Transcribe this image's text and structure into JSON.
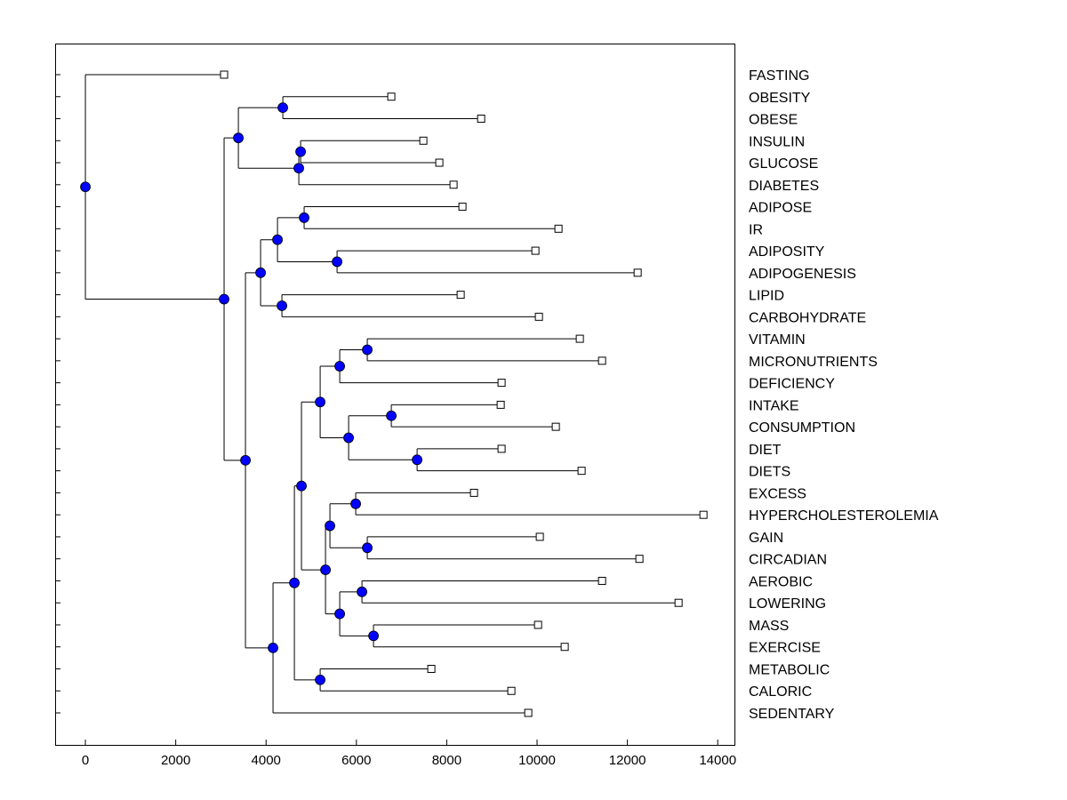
{
  "chart_data": {
    "type": "dendrogram",
    "title": "",
    "xlabel": "",
    "ylabel": "",
    "xlim": [
      -670,
      14370
    ],
    "xticks": [
      0,
      2000,
      4000,
      6000,
      8000,
      10000,
      12000,
      14000
    ],
    "node_color": "#0000ff",
    "leaves": [
      {
        "name": "FASTING",
        "value": 3071
      },
      {
        "name": "OBESITY",
        "value": 6773
      },
      {
        "name": "OBESE",
        "value": 8762
      },
      {
        "name": "INSULIN",
        "value": 7482
      },
      {
        "name": "GLUCOSE",
        "value": 7836
      },
      {
        "name": "DIABETES",
        "value": 8151
      },
      {
        "name": "ADIPOSE",
        "value": 8348
      },
      {
        "name": "IR",
        "value": 10474
      },
      {
        "name": "ADIPOSITY",
        "value": 9963
      },
      {
        "name": "ADIPOGENESIS",
        "value": 12227
      },
      {
        "name": "LIPID",
        "value": 8309
      },
      {
        "name": "CARBOHYDRATE",
        "value": 10041
      },
      {
        "name": "VITAMIN",
        "value": 10947
      },
      {
        "name": "MICRONUTRIENTS",
        "value": 11439
      },
      {
        "name": "DEFICIENCY",
        "value": 9214
      },
      {
        "name": "INTAKE",
        "value": 9195
      },
      {
        "name": "CONSUMPTION",
        "value": 10415
      },
      {
        "name": "DIET",
        "value": 9214
      },
      {
        "name": "DIETS",
        "value": 10986
      },
      {
        "name": "EXCESS",
        "value": 8604
      },
      {
        "name": "HYPERCHOLESTEROLEMIA",
        "value": 13684
      },
      {
        "name": "GAIN",
        "value": 10061
      },
      {
        "name": "CIRCADIAN",
        "value": 12266
      },
      {
        "name": "AEROBIC",
        "value": 11439
      },
      {
        "name": "LOWERING",
        "value": 13133
      },
      {
        "name": "MASS",
        "value": 10022
      },
      {
        "name": "EXERCISE",
        "value": 10612
      },
      {
        "name": "METABOLIC",
        "value": 7659
      },
      {
        "name": "CALORIC",
        "value": 9431
      },
      {
        "name": "SEDENTARY",
        "value": 9805
      }
    ],
    "tree": {
      "h": 0,
      "c": [
        "FASTING",
        {
          "h": 3071,
          "c": [
            {
              "h": 3387,
              "c": [
                {
                  "h": 4371,
                  "c": [
                    "OBESITY",
                    "OBESE"
                  ]
                },
                {
                  "h": 4725,
                  "c": [
                    {
                      "h": 4765,
                      "c": [
                        "INSULIN",
                        "GLUCOSE"
                      ]
                    },
                    "DIABETES"
                  ]
                }
              ]
            },
            {
              "h": 3544,
              "c": [
                {
                  "h": 3879,
                  "c": [
                    {
                      "h": 4253,
                      "c": [
                        {
                          "h": 4843,
                          "c": [
                            "ADIPOSE",
                            "IR"
                          ]
                        },
                        {
                          "h": 5572,
                          "c": [
                            "ADIPOSITY",
                            "ADIPOGENESIS"
                          ]
                        }
                      ]
                    },
                    {
                      "h": 4351,
                      "c": [
                        "LIPID",
                        "CARBOHYDRATE"
                      ]
                    }
                  ]
                },
                {
                  "h": 4154,
                  "c": [
                    {
                      "h": 4627,
                      "c": [
                        {
                          "h": 4784,
                          "c": [
                            {
                              "h": 5198,
                              "c": [
                                {
                                  "h": 5631,
                                  "c": [
                                    {
                                      "h": 6241,
                                      "c": [
                                        "VITAMIN",
                                        "MICRONUTRIENTS"
                                      ]
                                    },
                                    "DEFICIENCY"
                                  ]
                                },
                                {
                                  "h": 5828,
                                  "c": [
                                    {
                                      "h": 6773,
                                      "c": [
                                        "INTAKE",
                                        "CONSUMPTION"
                                      ]
                                    },
                                    {
                                      "h": 7344,
                                      "c": [
                                        "DIET",
                                        "DIETS"
                                      ]
                                    }
                                  ]
                                }
                              ]
                            },
                            {
                              "h": 5316,
                              "c": [
                                {
                                  "h": 5414,
                                  "c": [
                                    {
                                      "h": 5985,
                                      "c": [
                                        "EXCESS",
                                        "HYPERCHOLESTEROLEMIA"
                                      ]
                                    },
                                    {
                                      "h": 6241,
                                      "c": [
                                        "GAIN",
                                        "CIRCADIAN"
                                      ]
                                    }
                                  ]
                                },
                                {
                                  "h": 5631,
                                  "c": [
                                    {
                                      "h": 6123,
                                      "c": [
                                        "AEROBIC",
                                        "LOWERING"
                                      ]
                                    },
                                    {
                                      "h": 6379,
                                      "c": [
                                        "MASS",
                                        "EXERCISE"
                                      ]
                                    }
                                  ]
                                }
                              ]
                            }
                          ]
                        },
                        {
                          "h": 5198,
                          "c": [
                            "METABOLIC",
                            "CALORIC"
                          ]
                        }
                      ]
                    },
                    "SEDENTARY"
                  ]
                }
              ]
            }
          ]
        }
      ]
    }
  }
}
